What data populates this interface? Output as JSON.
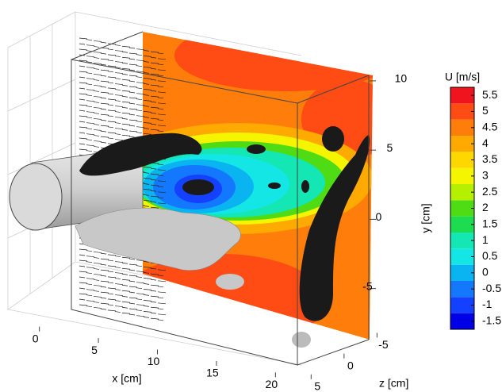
{
  "chart_data": {
    "type": "contour3d",
    "x_label": "x [cm]",
    "y_label": "y [cm]",
    "z_label": "z [cm]",
    "xlim": [
      -3,
      23
    ],
    "xticks": [
      0,
      5,
      10,
      15,
      20
    ],
    "ylim": [
      -8,
      12
    ],
    "yticks": [
      -5,
      0,
      5,
      10
    ],
    "zlim": [
      -7,
      6
    ],
    "zticks": [
      -5,
      0,
      5
    ],
    "colorbar": {
      "title": "U [m/s]",
      "clim": [
        -1.75,
        5.75
      ],
      "ticks": [
        -1.5,
        -1,
        -0.5,
        0,
        0.5,
        1,
        1.5,
        2,
        2.5,
        3,
        3.5,
        4,
        4.5,
        5,
        5.5
      ],
      "colors": [
        "#0000e6",
        "#1440ff",
        "#1478ff",
        "#0ab4f0",
        "#14e6e6",
        "#14e6b4",
        "#1edc50",
        "#50dc14",
        "#b4f000",
        "#f5f500",
        "#ffd700",
        "#ffaa00",
        "#ff7d0a",
        "#ff4b14",
        "#f0141e"
      ]
    }
  }
}
